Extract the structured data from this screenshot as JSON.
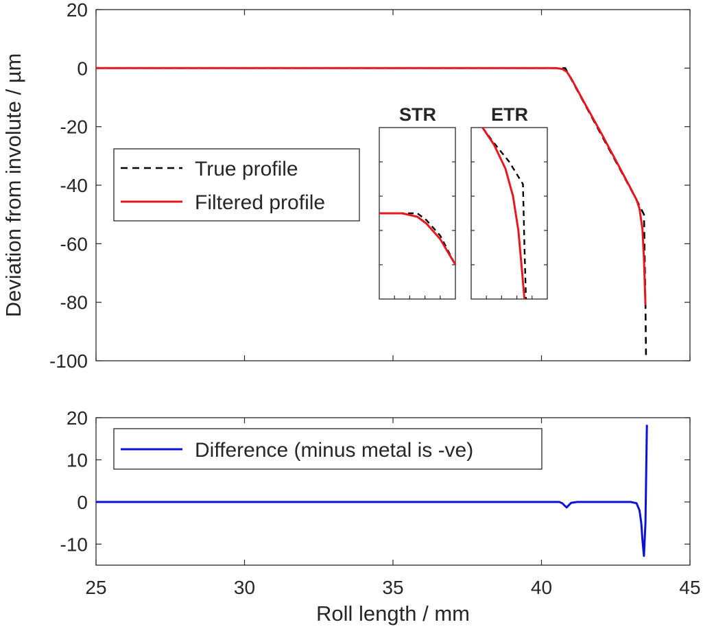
{
  "chart_data": [
    {
      "type": "line",
      "ylabel": "Deviation from involute / µm",
      "xlim": [
        25,
        45
      ],
      "ylim": [
        -100,
        20
      ],
      "xticks": [
        25,
        30,
        35,
        40,
        45
      ],
      "yticks": [
        20,
        0,
        -20,
        -40,
        -60,
        -80,
        -100
      ],
      "xtick_labels_visible": false,
      "legend_position": "center-left",
      "grid": false,
      "series": [
        {
          "name": "True profile",
          "style": "dashed",
          "color": "#000000",
          "x": [
            25,
            40.8,
            43.2,
            43.45,
            43.5,
            43.52
          ],
          "y": [
            0,
            0,
            -45,
            -50,
            -80,
            -98
          ]
        },
        {
          "name": "Filtered profile",
          "style": "solid",
          "color": "#e8161d",
          "x": [
            25,
            40.5,
            40.7,
            40.85,
            41.0,
            41.4,
            42.0,
            42.5,
            43.0,
            43.2,
            43.3,
            43.4,
            43.45,
            43.5
          ],
          "y": [
            0,
            0,
            -0.3,
            -1.2,
            -3.5,
            -11,
            -22,
            -31.5,
            -41,
            -45,
            -48,
            -55,
            -65,
            -81
          ]
        }
      ],
      "insets": [
        {
          "title": "STR",
          "true_profile": [
            [
              0,
              0.5
            ],
            [
              0.5,
              0.5
            ],
            [
              0.62,
              0.46
            ],
            [
              0.8,
              0.37
            ],
            [
              1,
              0.2
            ]
          ],
          "filtered_profile": [
            [
              0,
              0.5
            ],
            [
              0.3,
              0.5
            ],
            [
              0.5,
              0.48
            ],
            [
              0.62,
              0.44
            ],
            [
              0.8,
              0.35
            ],
            [
              1,
              0.2
            ]
          ]
        },
        {
          "title": "ETR",
          "true_profile": [
            [
              0.15,
              1.0
            ],
            [
              0.3,
              0.91
            ],
            [
              0.5,
              0.8
            ],
            [
              0.68,
              0.67
            ],
            [
              0.7,
              0.3
            ],
            [
              0.72,
              0.0
            ]
          ],
          "filtered_profile": [
            [
              0.15,
              1.0
            ],
            [
              0.3,
              0.9
            ],
            [
              0.45,
              0.76
            ],
            [
              0.55,
              0.6
            ],
            [
              0.62,
              0.4
            ],
            [
              0.66,
              0.2
            ],
            [
              0.7,
              0.0
            ]
          ]
        }
      ]
    },
    {
      "type": "line",
      "xlabel": "Roll length / mm",
      "xlim": [
        25,
        45
      ],
      "ylim": [
        -15,
        20
      ],
      "xticks": [
        25,
        30,
        35,
        40,
        45
      ],
      "yticks": [
        20,
        10,
        0,
        -10
      ],
      "legend_position": "top-left",
      "grid": false,
      "series": [
        {
          "name": "Difference (minus metal is -ve)",
          "style": "solid",
          "color": "#0a12d8",
          "x": [
            25,
            40.6,
            40.7,
            40.8,
            40.85,
            40.9,
            41.0,
            41.2,
            43.0,
            43.2,
            43.3,
            43.36,
            43.4,
            43.45,
            43.5,
            43.55
          ],
          "y": [
            0,
            0,
            -0.3,
            -1.0,
            -1.3,
            -0.9,
            -0.2,
            0,
            0,
            -0.3,
            -2,
            -5,
            -9,
            -12.8,
            -5,
            18.3
          ]
        }
      ]
    }
  ]
}
